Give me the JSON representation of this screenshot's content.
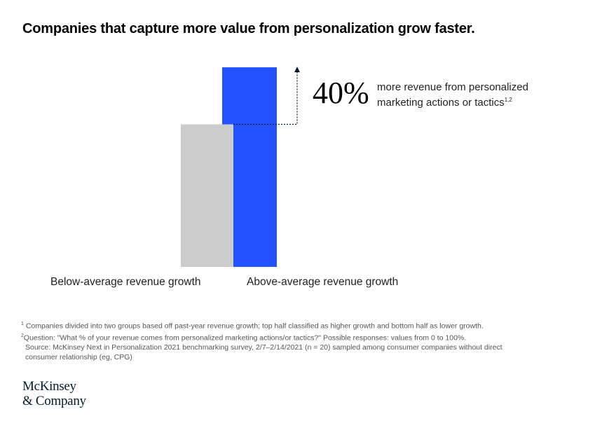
{
  "chart_data": {
    "type": "bar",
    "title": "Companies that capture more value from personalization grow faster.",
    "categories": [
      "Below-average revenue growth",
      "Above-average revenue growth"
    ],
    "values": [
      100,
      140
    ],
    "colors": [
      "#cccccc",
      "#2251ff"
    ],
    "annotation": {
      "value": "40%",
      "text_line1": "more revenue from personalized",
      "text_line2": "marketing actions or tactics",
      "superscript": "1,2"
    }
  },
  "footnotes": [
    {
      "mark": "1",
      "text": "Companies divided into two groups based off past-year revenue growth; top half classified as higher growth and bottom half as lower growth."
    },
    {
      "mark": "2",
      "text": "Question: \"What % of your revenue comes from personalized marketing actions/or tactics?\" Possible responses: values from 0 to 100%."
    }
  ],
  "source": "Source: McKinsey Next in Personalization 2021 benchmarking survey, 2/7–2/14/2021 (n = 20) sampled among consumer companies without direct consumer relationship (eg, CPG)",
  "logo": {
    "line1": "McKinsey",
    "line2": "& Company"
  }
}
